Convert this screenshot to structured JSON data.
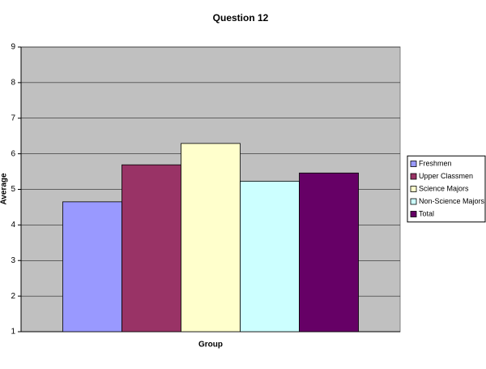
{
  "chart_data": {
    "type": "bar",
    "title": "Question 12",
    "x_label": "Group",
    "y_label": "Average",
    "categories": [
      null
    ],
    "series": [
      {
        "name": "Freshmen",
        "color": "#9999ff",
        "values": [
          4.65
        ]
      },
      {
        "name": "Upper Classmen",
        "color": "#993366",
        "values": [
          5.69
        ]
      },
      {
        "name": "Science Majors",
        "color": "#ffffcc",
        "values": [
          6.29
        ]
      },
      {
        "name": "Non-Science Majors",
        "color": "#ccffff",
        "values": [
          5.23
        ]
      },
      {
        "name": "Total",
        "color": "#660066",
        "values": [
          5.46
        ]
      }
    ],
    "ylim": [
      1,
      9
    ],
    "yticks": [
      1,
      2,
      3,
      4,
      5,
      6,
      7,
      8,
      9
    ],
    "grid": true,
    "legend": "right"
  }
}
